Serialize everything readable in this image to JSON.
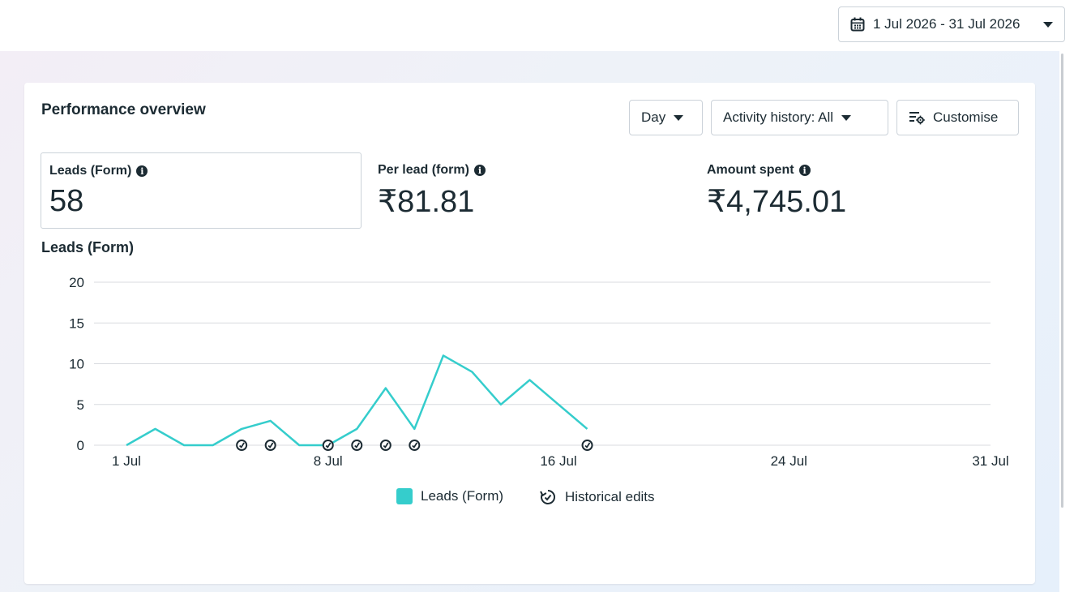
{
  "date_range": {
    "label": "1 Jul 2026 - 31 Jul 2026",
    "icon": "calendar-icon"
  },
  "card": {
    "title": "Performance overview",
    "controls": {
      "granularity": "Day",
      "activity_history": "Activity history: All",
      "customise": "Customise"
    },
    "metrics": [
      {
        "label": "Leads (Form)",
        "value": "58",
        "selected": true
      },
      {
        "label": "Per lead (form)",
        "value": "₹81.81",
        "selected": false
      },
      {
        "label": "Amount spent",
        "value": "₹4,745.01",
        "selected": false
      }
    ],
    "chart_title": "Leads (Form)",
    "legend": {
      "series": "Leads (Form)",
      "edits": "Historical edits"
    }
  },
  "colors": {
    "series": "#35cdcc",
    "grid": "#d8dbdf",
    "text": "#1c2b33"
  },
  "chart_data": {
    "type": "line",
    "title": "Leads (Form)",
    "xlabel": "",
    "ylabel": "",
    "ylim": [
      0,
      20
    ],
    "yticks": [
      0,
      5,
      10,
      15,
      20
    ],
    "x_domain": [
      "1 Jul",
      "31 Jul"
    ],
    "xticks": [
      "1 Jul",
      "8 Jul",
      "16 Jul",
      "24 Jul",
      "31 Jul"
    ],
    "grid": true,
    "legend_position": "bottom-center",
    "series": [
      {
        "name": "Leads (Form)",
        "x": [
          "1 Jul",
          "2 Jul",
          "3 Jul",
          "4 Jul",
          "5 Jul",
          "6 Jul",
          "7 Jul",
          "8 Jul",
          "9 Jul",
          "10 Jul",
          "11 Jul",
          "12 Jul",
          "13 Jul",
          "14 Jul",
          "15 Jul",
          "16 Jul",
          "17 Jul"
        ],
        "values": [
          0,
          2,
          0,
          0,
          2,
          3,
          0,
          0,
          2,
          7,
          2,
          11,
          9,
          5,
          8,
          5,
          2
        ]
      }
    ],
    "historical_edits": [
      "5 Jul",
      "6 Jul",
      "8 Jul",
      "9 Jul",
      "10 Jul",
      "11 Jul",
      "17 Jul"
    ]
  }
}
